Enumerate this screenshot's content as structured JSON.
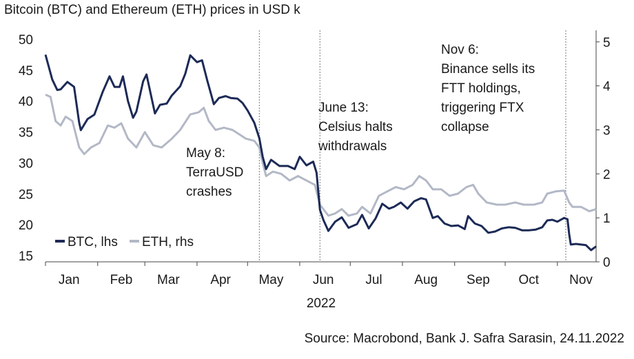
{
  "chart_data": {
    "type": "line",
    "title": "Bitcoin (BTC) and Ethereum (ETH) prices in USD k",
    "xlabel": "2022",
    "source": "Source: Macrobond, Bank J. Safra Sarasin, 24.11.2022",
    "months": [
      "Jan",
      "Feb",
      "Mar",
      "Apr",
      "May",
      "Jun",
      "Jul",
      "Aug",
      "Sep",
      "Oct",
      "Nov"
    ],
    "y_left": {
      "ticks": [
        "15",
        "20",
        "25",
        "30",
        "35",
        "40",
        "45",
        "50"
      ],
      "ylim": [
        14,
        51
      ]
    },
    "y_right": {
      "ticks": [
        "0",
        "1",
        "2",
        "3",
        "4",
        "5"
      ],
      "ylim": [
        0,
        5.2
      ]
    },
    "x_range": [
      "2022-01-01",
      "2022-11-24"
    ],
    "grid": false,
    "legend_position": "bottom-left",
    "series": [
      {
        "name": "BTC, lhs",
        "axis": "left",
        "color": "#1c2a56",
        "points": [
          [
            "2022-01-01",
            47.5
          ],
          [
            "2022-01-05",
            43.5
          ],
          [
            "2022-01-08",
            41.8
          ],
          [
            "2022-01-10",
            41.9
          ],
          [
            "2022-01-14",
            43.1
          ],
          [
            "2022-01-18",
            42.3
          ],
          [
            "2022-01-21",
            36.5
          ],
          [
            "2022-01-22",
            35.3
          ],
          [
            "2022-01-26",
            37.1
          ],
          [
            "2022-01-30",
            37.8
          ],
          [
            "2022-02-04",
            41.5
          ],
          [
            "2022-02-08",
            44.0
          ],
          [
            "2022-02-11",
            42.3
          ],
          [
            "2022-02-14",
            42.3
          ],
          [
            "2022-02-16",
            44.0
          ],
          [
            "2022-02-19",
            40.0
          ],
          [
            "2022-02-22",
            37.3
          ],
          [
            "2022-02-24",
            38.3
          ],
          [
            "2022-02-28",
            43.2
          ],
          [
            "2022-03-02",
            44.3
          ],
          [
            "2022-03-07",
            38.0
          ],
          [
            "2022-03-10",
            39.4
          ],
          [
            "2022-03-14",
            39.6
          ],
          [
            "2022-03-17",
            40.9
          ],
          [
            "2022-03-22",
            42.4
          ],
          [
            "2022-03-25",
            44.4
          ],
          [
            "2022-03-28",
            47.4
          ],
          [
            "2022-04-01",
            46.3
          ],
          [
            "2022-04-04",
            46.6
          ],
          [
            "2022-04-07",
            43.4
          ],
          [
            "2022-04-11",
            39.5
          ],
          [
            "2022-04-14",
            40.5
          ],
          [
            "2022-04-18",
            40.8
          ],
          [
            "2022-04-21",
            40.5
          ],
          [
            "2022-04-25",
            40.4
          ],
          [
            "2022-04-28",
            39.7
          ],
          [
            "2022-05-01",
            38.5
          ],
          [
            "2022-05-05",
            36.5
          ],
          [
            "2022-05-08",
            34.0
          ],
          [
            "2022-05-10",
            31.0
          ],
          [
            "2022-05-12",
            29.0
          ],
          [
            "2022-05-15",
            30.5
          ],
          [
            "2022-05-20",
            29.5
          ],
          [
            "2022-05-25",
            29.5
          ],
          [
            "2022-05-29",
            29.0
          ],
          [
            "2022-06-01",
            31.0
          ],
          [
            "2022-06-05",
            29.6
          ],
          [
            "2022-06-09",
            30.2
          ],
          [
            "2022-06-11",
            28.4
          ],
          [
            "2022-06-13",
            22.4
          ],
          [
            "2022-06-15",
            20.8
          ],
          [
            "2022-06-18",
            19.0
          ],
          [
            "2022-06-22",
            20.5
          ],
          [
            "2022-06-26",
            21.2
          ],
          [
            "2022-06-30",
            19.5
          ],
          [
            "2022-07-05",
            20.1
          ],
          [
            "2022-07-08",
            21.6
          ],
          [
            "2022-07-12",
            19.4
          ],
          [
            "2022-07-16",
            21.0
          ],
          [
            "2022-07-20",
            23.4
          ],
          [
            "2022-07-24",
            22.6
          ],
          [
            "2022-07-27",
            22.9
          ],
          [
            "2022-07-31",
            23.6
          ],
          [
            "2022-08-04",
            22.6
          ],
          [
            "2022-08-08",
            23.8
          ],
          [
            "2022-08-12",
            24.3
          ],
          [
            "2022-08-15",
            24.1
          ],
          [
            "2022-08-19",
            21.1
          ],
          [
            "2022-08-22",
            21.4
          ],
          [
            "2022-08-26",
            20.2
          ],
          [
            "2022-08-30",
            19.8
          ],
          [
            "2022-09-03",
            19.9
          ],
          [
            "2022-09-07",
            19.3
          ],
          [
            "2022-09-09",
            21.4
          ],
          [
            "2022-09-13",
            20.2
          ],
          [
            "2022-09-17",
            19.8
          ],
          [
            "2022-09-21",
            18.7
          ],
          [
            "2022-09-25",
            18.9
          ],
          [
            "2022-09-29",
            19.4
          ],
          [
            "2022-10-03",
            19.6
          ],
          [
            "2022-10-07",
            19.5
          ],
          [
            "2022-10-11",
            19.1
          ],
          [
            "2022-10-15",
            19.1
          ],
          [
            "2022-10-19",
            19.2
          ],
          [
            "2022-10-23",
            19.6
          ],
          [
            "2022-10-26",
            20.7
          ],
          [
            "2022-10-29",
            20.8
          ],
          [
            "2022-11-01",
            20.5
          ],
          [
            "2022-11-05",
            21.1
          ],
          [
            "2022-11-07",
            20.9
          ],
          [
            "2022-11-08",
            18.5
          ],
          [
            "2022-11-09",
            16.8
          ],
          [
            "2022-11-12",
            16.9
          ],
          [
            "2022-11-15",
            16.8
          ],
          [
            "2022-11-18",
            16.7
          ],
          [
            "2022-11-21",
            15.9
          ],
          [
            "2022-11-24",
            16.5
          ]
        ]
      },
      {
        "name": "ETH, rhs",
        "axis": "right",
        "color": "#b3b8c6",
        "points": [
          [
            "2022-01-01",
            3.8
          ],
          [
            "2022-01-04",
            3.75
          ],
          [
            "2022-01-07",
            3.2
          ],
          [
            "2022-01-10",
            3.1
          ],
          [
            "2022-01-13",
            3.3
          ],
          [
            "2022-01-17",
            3.2
          ],
          [
            "2022-01-21",
            2.6
          ],
          [
            "2022-01-24",
            2.45
          ],
          [
            "2022-01-28",
            2.6
          ],
          [
            "2022-02-02",
            2.7
          ],
          [
            "2022-02-07",
            3.1
          ],
          [
            "2022-02-11",
            3.05
          ],
          [
            "2022-02-15",
            3.15
          ],
          [
            "2022-02-19",
            2.8
          ],
          [
            "2022-02-24",
            2.6
          ],
          [
            "2022-03-01",
            2.95
          ],
          [
            "2022-03-06",
            2.65
          ],
          [
            "2022-03-11",
            2.6
          ],
          [
            "2022-03-17",
            2.8
          ],
          [
            "2022-03-22",
            3.0
          ],
          [
            "2022-03-28",
            3.35
          ],
          [
            "2022-04-02",
            3.4
          ],
          [
            "2022-04-05",
            3.5
          ],
          [
            "2022-04-08",
            3.2
          ],
          [
            "2022-04-12",
            3.0
          ],
          [
            "2022-04-17",
            3.05
          ],
          [
            "2022-04-22",
            3.0
          ],
          [
            "2022-04-26",
            2.9
          ],
          [
            "2022-04-30",
            2.8
          ],
          [
            "2022-05-05",
            2.75
          ],
          [
            "2022-05-08",
            2.6
          ],
          [
            "2022-05-10",
            2.25
          ],
          [
            "2022-05-12",
            1.95
          ],
          [
            "2022-05-16",
            2.05
          ],
          [
            "2022-05-21",
            2.0
          ],
          [
            "2022-05-26",
            1.85
          ],
          [
            "2022-05-31",
            1.95
          ],
          [
            "2022-06-05",
            1.85
          ],
          [
            "2022-06-10",
            1.75
          ],
          [
            "2022-06-13",
            1.3
          ],
          [
            "2022-06-16",
            1.15
          ],
          [
            "2022-06-18",
            1.05
          ],
          [
            "2022-06-22",
            1.1
          ],
          [
            "2022-06-26",
            1.2
          ],
          [
            "2022-06-30",
            1.05
          ],
          [
            "2022-07-05",
            1.1
          ],
          [
            "2022-07-08",
            1.25
          ],
          [
            "2022-07-13",
            1.1
          ],
          [
            "2022-07-18",
            1.5
          ],
          [
            "2022-07-23",
            1.6
          ],
          [
            "2022-07-28",
            1.7
          ],
          [
            "2022-08-02",
            1.65
          ],
          [
            "2022-08-07",
            1.75
          ],
          [
            "2022-08-11",
            1.95
          ],
          [
            "2022-08-15",
            1.85
          ],
          [
            "2022-08-19",
            1.65
          ],
          [
            "2022-08-24",
            1.65
          ],
          [
            "2022-08-29",
            1.5
          ],
          [
            "2022-09-03",
            1.55
          ],
          [
            "2022-09-08",
            1.7
          ],
          [
            "2022-09-12",
            1.75
          ],
          [
            "2022-09-15",
            1.55
          ],
          [
            "2022-09-20",
            1.35
          ],
          [
            "2022-09-26",
            1.3
          ],
          [
            "2022-10-01",
            1.3
          ],
          [
            "2022-10-07",
            1.35
          ],
          [
            "2022-10-12",
            1.3
          ],
          [
            "2022-10-18",
            1.3
          ],
          [
            "2022-10-23",
            1.35
          ],
          [
            "2022-10-26",
            1.55
          ],
          [
            "2022-10-31",
            1.6
          ],
          [
            "2022-11-05",
            1.62
          ],
          [
            "2022-11-08",
            1.35
          ],
          [
            "2022-11-10",
            1.25
          ],
          [
            "2022-11-15",
            1.25
          ],
          [
            "2022-11-20",
            1.15
          ],
          [
            "2022-11-24",
            1.2
          ]
        ]
      }
    ],
    "events": [
      {
        "date": "2022-05-08",
        "lines": [
          "May 8:",
          "TerraUSD",
          "crashes"
        ]
      },
      {
        "date": "2022-06-13",
        "lines": [
          "June 13:",
          "Celsius halts",
          "withdrawals"
        ]
      },
      {
        "date": "2022-11-06",
        "lines": [
          "Nov 6:",
          "Binance sells its",
          "FTT holdings,",
          "triggering FTX",
          "collapse"
        ]
      }
    ]
  }
}
